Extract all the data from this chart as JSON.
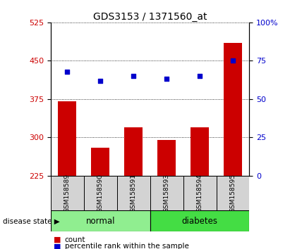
{
  "title": "GDS3153 / 1371560_at",
  "samples": [
    "GSM158589",
    "GSM158590",
    "GSM158591",
    "GSM158593",
    "GSM158594",
    "GSM158595"
  ],
  "counts": [
    370,
    280,
    320,
    295,
    320,
    485
  ],
  "percentiles": [
    68,
    62,
    65,
    63,
    65,
    75
  ],
  "ylim_left": [
    225,
    525
  ],
  "ylim_right": [
    0,
    100
  ],
  "yticks_left": [
    225,
    300,
    375,
    450,
    525
  ],
  "yticks_right": [
    0,
    25,
    50,
    75,
    100
  ],
  "ytick_labels_right": [
    "0",
    "25",
    "50",
    "75",
    "100%"
  ],
  "bar_color": "#cc0000",
  "dot_color": "#0000cc",
  "bar_width": 0.55,
  "group_ranges": [
    [
      -0.5,
      2.5
    ],
    [
      2.5,
      5.5
    ]
  ],
  "group_colors": [
    "#90ee90",
    "#44dd44"
  ],
  "group_labels": [
    "normal",
    "diabetes"
  ],
  "group_label_prefix": "disease state",
  "legend_count_label": "count",
  "legend_percentile_label": "percentile rank within the sample",
  "bar_label_color": "#cc0000",
  "dot_label_color": "#0000cc",
  "title_fontsize": 10,
  "tick_fontsize": 8,
  "sample_fontsize": 6.5,
  "group_fontsize": 8.5
}
